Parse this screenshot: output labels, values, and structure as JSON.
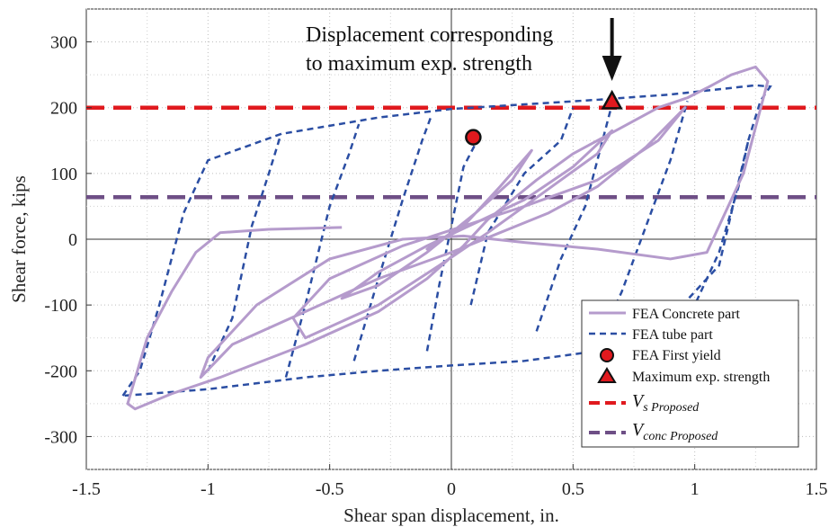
{
  "chart_data": {
    "type": "line",
    "xlabel": "Shear span displacement, in.",
    "ylabel": "Shear force, kips",
    "xlim": [
      -1.5,
      1.5
    ],
    "ylim": [
      -350,
      350
    ],
    "x_ticks": [
      "-1.5",
      "-1",
      "-0.5",
      "0",
      "0.5",
      "1",
      "1.5"
    ],
    "y_ticks": [
      "-300",
      "-200",
      "-100",
      "0",
      "100",
      "200",
      "300"
    ],
    "grid": true,
    "legend_position": "bottom-right",
    "annotation": {
      "line1": "Displacement corresponding",
      "line2": "to maximum exp. strength",
      "arrow_x": 0.66
    },
    "series": [
      {
        "name": "FEA Concrete part",
        "color": "#b59bcc",
        "style": "solid",
        "x": [
          -0.45,
          -0.75,
          -0.95,
          -1.05,
          -1.15,
          -1.25,
          -1.33,
          -1.3,
          -1.15,
          -0.95,
          -0.6,
          -0.3,
          -0.1,
          0.05,
          0.15,
          0.25,
          0.35,
          0.5,
          0.7,
          0.85,
          0.97,
          1.05,
          1.15,
          1.25,
          1.3,
          1.2,
          1.05,
          0.9,
          0.6,
          0.3,
          0.05,
          -0.2,
          -0.5,
          -0.8,
          -1.0,
          -1.03,
          -0.9,
          -0.6,
          -0.3,
          0.0,
          0.2,
          0.4,
          0.6,
          0.8,
          0.96,
          0.85,
          0.6,
          0.3,
          0.05,
          -0.2,
          -0.5,
          -0.65,
          -0.6,
          -0.3,
          -0.05,
          0.15,
          0.3,
          0.45,
          0.6,
          0.66,
          0.5,
          0.3,
          0.1,
          -0.1,
          -0.3,
          -0.45,
          -0.3,
          -0.1,
          0.1,
          0.25,
          0.33,
          0.2,
          0.05,
          -0.1,
          0.0,
          0.05
        ],
        "y": [
          18,
          15,
          10,
          -20,
          -80,
          -150,
          -250,
          -258,
          -235,
          -210,
          -160,
          -110,
          -60,
          -10,
          30,
          60,
          90,
          130,
          170,
          200,
          215,
          230,
          250,
          262,
          240,
          100,
          -20,
          -30,
          -15,
          -5,
          5,
          0,
          -30,
          -100,
          -180,
          -210,
          -160,
          -110,
          -60,
          -20,
          10,
          40,
          80,
          140,
          200,
          150,
          90,
          50,
          20,
          -10,
          -60,
          -120,
          -150,
          -100,
          -40,
          10,
          50,
          90,
          130,
          165,
          110,
          60,
          25,
          -10,
          -50,
          -90,
          -70,
          -20,
          40,
          90,
          135,
          80,
          20,
          -15,
          10,
          25
        ]
      },
      {
        "name": "FEA tube part",
        "color": "#2b4ea3",
        "style": "dashed",
        "x": [
          -1.35,
          -1.28,
          -1.2,
          -1.1,
          -1.0,
          -0.7,
          -0.3,
          0.0,
          0.3,
          0.6,
          0.9,
          1.1,
          1.25,
          1.31,
          1.27,
          1.22,
          1.1,
          0.9,
          0.6,
          0.3,
          0.0,
          -0.3,
          -0.6,
          -1.0,
          -1.35
        ],
        "y": [
          -238,
          -200,
          -100,
          40,
          120,
          160,
          185,
          198,
          205,
          212,
          220,
          228,
          234,
          232,
          210,
          150,
          -40,
          -120,
          -170,
          -185,
          -192,
          -200,
          -210,
          -228,
          -238
        ]
      },
      {
        "name": "FEA First yield",
        "type": "marker",
        "marker": "circle",
        "color": "#e0191e",
        "x": 0.09,
        "y": 155
      },
      {
        "name": "Maximum exp. strength",
        "type": "marker",
        "marker": "triangle",
        "color": "#e0191e",
        "x": 0.66,
        "y": 210
      },
      {
        "name_main": "V",
        "name_sub": "s Proposed",
        "type": "hline",
        "color": "#e0191e",
        "y": 200
      },
      {
        "name_main": "V",
        "name_sub": "conc Proposed",
        "type": "hline",
        "color": "#6e4f86",
        "y": 64
      }
    ],
    "extra_tube_unloading": [
      [
        [
          -1.0,
          -200
        ],
        [
          -0.9,
          -120
        ],
        [
          -0.82,
          20
        ],
        [
          -0.75,
          100
        ],
        [
          -0.7,
          160
        ]
      ],
      [
        [
          -0.68,
          -210
        ],
        [
          -0.6,
          -100
        ],
        [
          -0.5,
          50
        ],
        [
          -0.42,
          130
        ],
        [
          -0.38,
          175
        ]
      ],
      [
        [
          -0.4,
          -185
        ],
        [
          -0.3,
          -60
        ],
        [
          -0.2,
          60
        ],
        [
          -0.12,
          150
        ],
        [
          -0.08,
          190
        ]
      ],
      [
        [
          -0.1,
          -170
        ],
        [
          -0.05,
          -70
        ],
        [
          0.0,
          20
        ],
        [
          0.05,
          110
        ],
        [
          0.12,
          160
        ]
      ],
      [
        [
          0.08,
          -100
        ],
        [
          0.15,
          10
        ],
        [
          0.3,
          100
        ],
        [
          0.45,
          150
        ],
        [
          0.5,
          200
        ]
      ],
      [
        [
          0.35,
          -140
        ],
        [
          0.45,
          -30
        ],
        [
          0.55,
          50
        ],
        [
          0.6,
          120
        ],
        [
          0.66,
          205
        ]
      ],
      [
        [
          0.6,
          -160
        ],
        [
          0.7,
          -80
        ],
        [
          0.8,
          20
        ],
        [
          0.9,
          120
        ],
        [
          0.97,
          210
        ]
      ],
      [
        [
          0.9,
          -185
        ],
        [
          1.0,
          -100
        ],
        [
          1.1,
          -20
        ],
        [
          1.18,
          80
        ],
        [
          1.22,
          150
        ]
      ]
    ]
  }
}
